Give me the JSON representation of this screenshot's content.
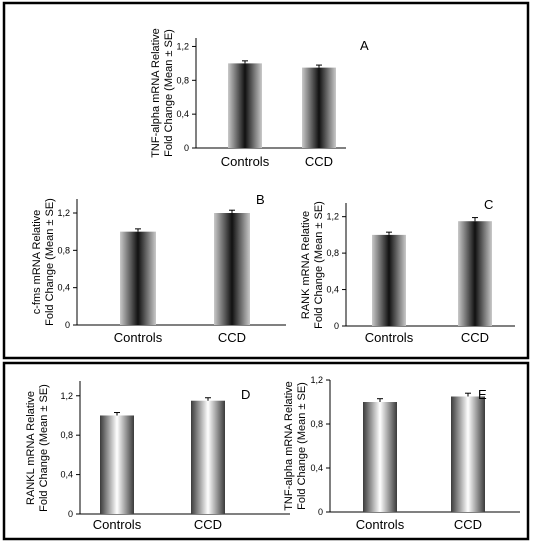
{
  "chart_data": [
    {
      "type": "bar",
      "panel_label": "A",
      "categories": [
        "Controls",
        "CCD"
      ],
      "values": [
        1.0,
        0.95
      ],
      "errors": [
        0.03,
        0.03
      ],
      "ylabel_lines": [
        "TNF-alpha mRNA Relative",
        "Fold  Change (Mean ± SE)"
      ],
      "yticks": [
        "0",
        "0,4",
        "0,8",
        "1,2"
      ],
      "ylim": [
        0,
        1.3
      ],
      "grid": false
    },
    {
      "type": "bar",
      "panel_label": "B",
      "categories": [
        "Controls",
        "CCD"
      ],
      "values": [
        1.0,
        1.2
      ],
      "errors": [
        0.03,
        0.03
      ],
      "ylabel_lines": [
        "c-fms mRNA Relative",
        "Fold  Change (Mean ± SE)"
      ],
      "yticks": [
        "0",
        "0,4",
        "0,8",
        "1,2"
      ],
      "ylim": [
        0,
        1.35
      ],
      "grid": false
    },
    {
      "type": "bar",
      "panel_label": "C",
      "categories": [
        "Controls",
        "CCD"
      ],
      "values": [
        1.0,
        1.15
      ],
      "errors": [
        0.03,
        0.04
      ],
      "ylabel_lines": [
        "RANK mRNA Relative",
        "Fold  Change (Mean ± SE)"
      ],
      "yticks": [
        "0",
        "0,4",
        "0,8",
        "1,2"
      ],
      "ylim": [
        0,
        1.35
      ],
      "grid": false
    },
    {
      "type": "bar",
      "panel_label": "D",
      "categories": [
        "Controls",
        "CCD"
      ],
      "values": [
        1.0,
        1.15
      ],
      "errors": [
        0.03,
        0.03
      ],
      "ylabel_lines": [
        "RANKL mRNA Relative",
        "Fold  Change (Mean ± SE)"
      ],
      "yticks": [
        "0",
        "0,4",
        "0,8",
        "1,2"
      ],
      "ylim": [
        0,
        1.35
      ],
      "grid": false
    },
    {
      "type": "bar",
      "panel_label": "E",
      "categories": [
        "Controls",
        "CCD"
      ],
      "values": [
        1.0,
        1.05
      ],
      "errors": [
        0.03,
        0.03
      ],
      "ylabel_lines": [
        "TNF-alpha mRNA Relative",
        "Fold  Change (Mean ± SE)"
      ],
      "yticks": [
        "0",
        "0,4",
        "0,8",
        "1,2"
      ],
      "ylim": [
        0,
        1.2
      ],
      "grid": false
    }
  ]
}
